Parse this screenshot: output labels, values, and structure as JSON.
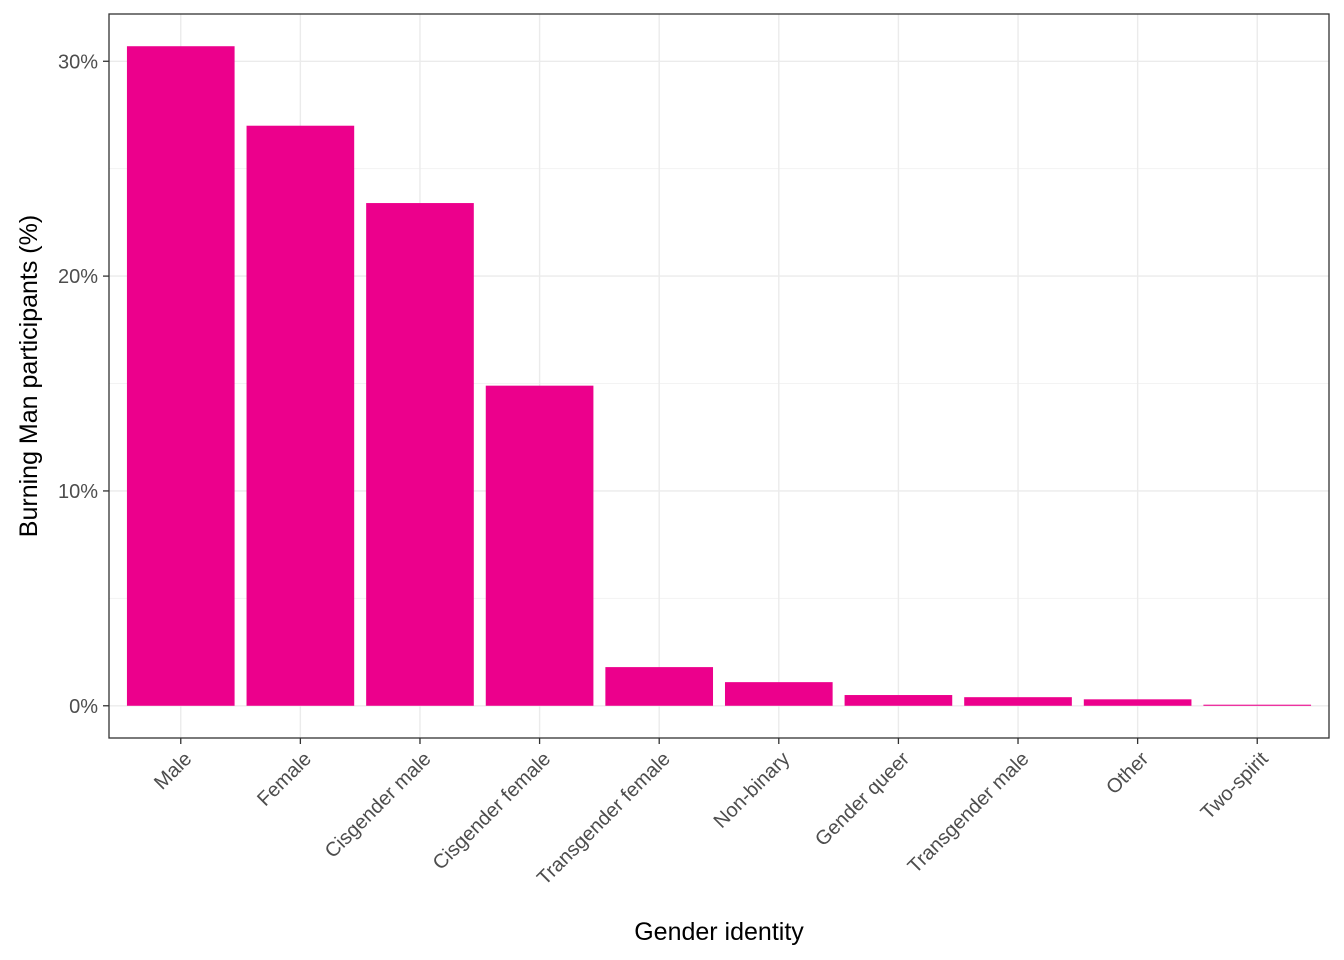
{
  "chart_data": {
    "type": "bar",
    "categories": [
      "Male",
      "Female",
      "Cisgender male",
      "Cisgender female",
      "Transgender female",
      "Non-binary",
      "Gender queer",
      "Transgender male",
      "Other",
      "Two-spirit"
    ],
    "values": [
      30.7,
      27.0,
      23.4,
      14.9,
      1.8,
      1.1,
      0.5,
      0.4,
      0.3,
      0.05
    ],
    "xlabel": "Gender identity",
    "ylabel": "Burning Man participants (%)",
    "ylim": [
      -1.5,
      32.2
    ],
    "yticks": [
      0,
      10,
      20,
      30
    ],
    "ytick_labels": [
      "0%",
      "10%",
      "20%",
      "30%"
    ],
    "grid": true,
    "colors": {
      "bar": "#EC008C",
      "grid_major": "#ebebeb",
      "grid_minor": "#f3f3f3",
      "panel_border": "#333333",
      "tick_text": "#4d4d4d"
    }
  }
}
